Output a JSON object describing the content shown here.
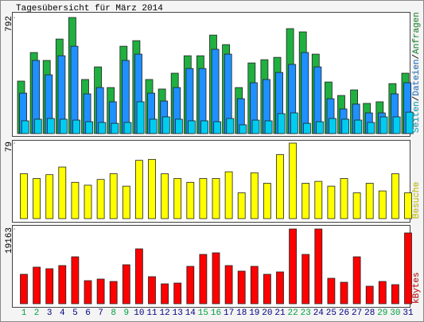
{
  "chart_data": [
    {
      "type": "bar",
      "layout": "overlapped",
      "title": "Tagesübersicht für März 2014",
      "ylim": [
        0,
        792
      ],
      "yticks": [
        792
      ],
      "legend_separator": "/",
      "series": [
        {
          "name": "Anfragen",
          "color": "#20b040",
          "values": [
            358,
            553,
            499,
            645,
            792,
            369,
            455,
            314,
            596,
            634,
            369,
            304,
            412,
            531,
            531,
            672,
            607,
            314,
            482,
            504,
            520,
            716,
            694,
            542,
            352,
            260,
            298,
            206,
            217,
            341,
            412
          ]
        },
        {
          "name": "Dateien",
          "color": "#1e90ff",
          "values": [
            276,
            499,
            401,
            531,
            596,
            271,
            314,
            217,
            499,
            542,
            276,
            222,
            314,
            444,
            444,
            575,
            542,
            238,
            347,
            369,
            417,
            472,
            553,
            455,
            238,
            168,
            201,
            141,
            141,
            271,
            347
          ]
        },
        {
          "name": "Seiten",
          "color": "#00ccf0",
          "values": [
            87,
            98,
            103,
            98,
            92,
            81,
            76,
            70,
            76,
            217,
            98,
            114,
            98,
            87,
            87,
            81,
            103,
            60,
            92,
            87,
            136,
            141,
            70,
            81,
            103,
            98,
            92,
            76,
            114,
            114,
            146
          ]
        }
      ]
    },
    {
      "type": "bar",
      "ylim": [
        0,
        79
      ],
      "yticks": [
        79
      ],
      "series": [
        {
          "name": "Besuche",
          "color": "#ffff00",
          "values": [
            47,
            42,
            46,
            54,
            38,
            35,
            41,
            47,
            34,
            61,
            62,
            47,
            42,
            38,
            42,
            42,
            49,
            27,
            48,
            37,
            67,
            79,
            37,
            39,
            34,
            42,
            27,
            37,
            29,
            47,
            27
          ]
        }
      ]
    },
    {
      "type": "bar",
      "ylim": [
        0,
        19163
      ],
      "yticks": [
        19163
      ],
      "categories": [
        "1",
        "2",
        "3",
        "4",
        "5",
        "6",
        "7",
        "8",
        "9",
        "10",
        "11",
        "12",
        "13",
        "14",
        "15",
        "16",
        "17",
        "18",
        "19",
        "20",
        "21",
        "22",
        "23",
        "24",
        "25",
        "26",
        "27",
        "28",
        "29",
        "30",
        "31"
      ],
      "category_colors": [
        "#00a040",
        "#00a040",
        "#000080",
        "#000080",
        "#000080",
        "#000080",
        "#000080",
        "#00a040",
        "#00a040",
        "#000080",
        "#000080",
        "#000080",
        "#000080",
        "#000080",
        "#00a040",
        "#00a040",
        "#000080",
        "#000080",
        "#000080",
        "#000080",
        "#000080",
        "#00a040",
        "#00a040",
        "#000080",
        "#000080",
        "#000080",
        "#000080",
        "#000080",
        "#00a040",
        "#00a040",
        "#000080"
      ],
      "series": [
        {
          "name": "kBytes",
          "color": "#ff0000",
          "values": [
            7544,
            9379,
            8972,
            9787,
            12030,
            5913,
            6321,
            5709,
            9991,
            14069,
            6933,
            5098,
            5301,
            9583,
            12642,
            13050,
            9787,
            8360,
            9583,
            7544,
            8156,
            19163,
            12642,
            19163,
            6525,
            5505,
            12030,
            4486,
            5709,
            4894,
            18147
          ]
        }
      ]
    }
  ]
}
